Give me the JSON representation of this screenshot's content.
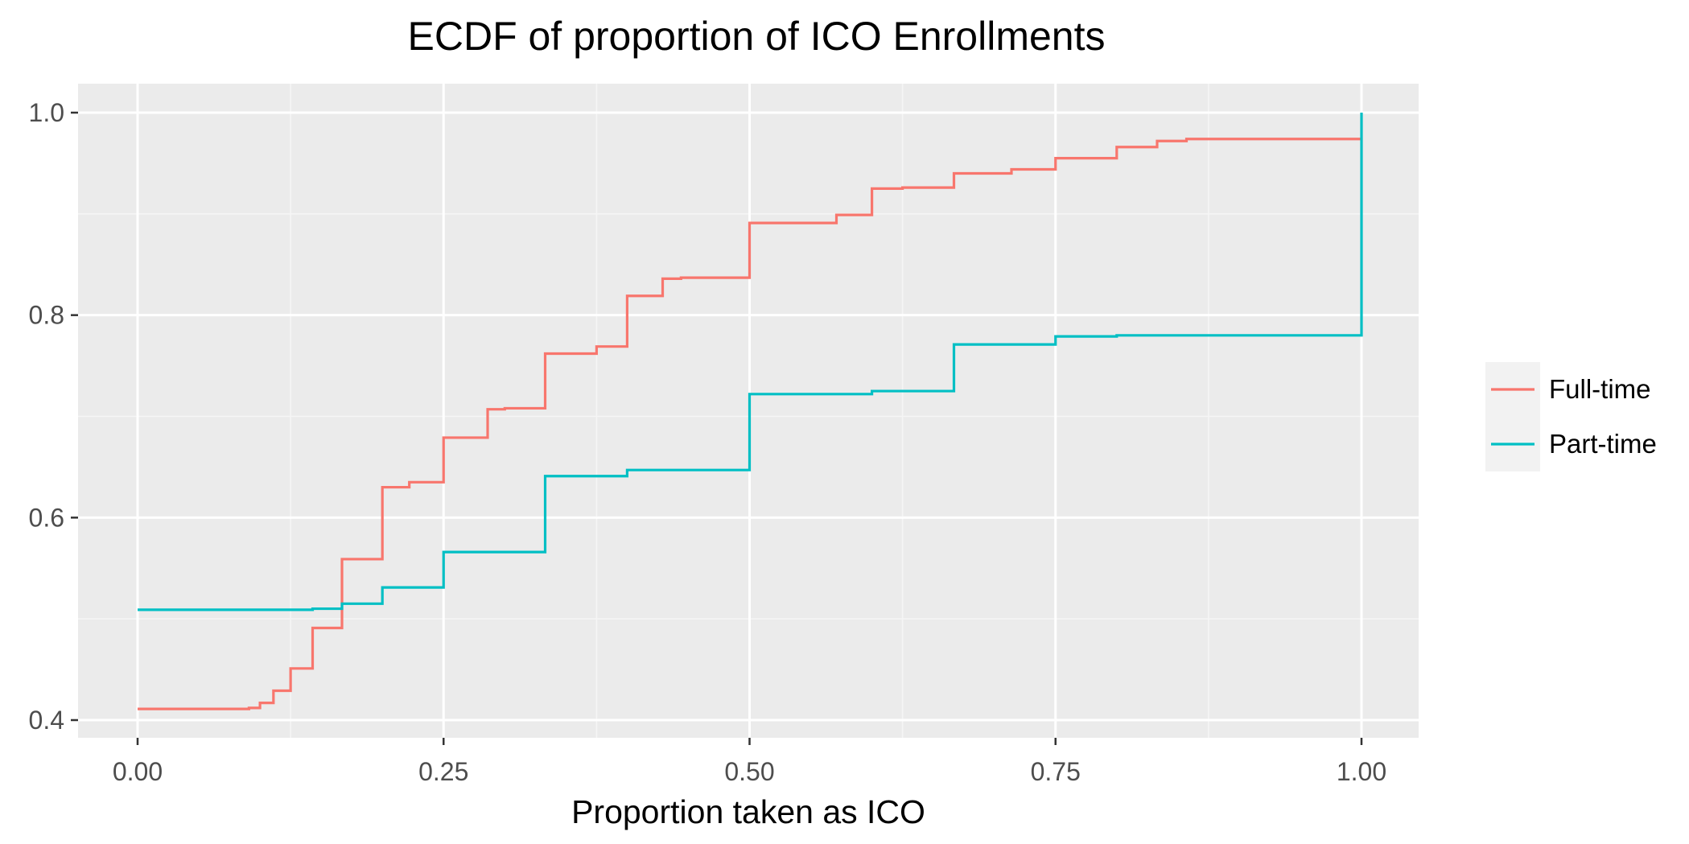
{
  "chart_data": {
    "type": "line",
    "step": true,
    "title": "ECDF of proportion of ICO Enrollments",
    "xlabel": "Proportion taken as ICO",
    "ylabel": "",
    "xlim": [
      0,
      1
    ],
    "ylim": [
      0.4,
      1.0
    ],
    "x_ticks": [
      0,
      0.25,
      0.5,
      0.75,
      1.0
    ],
    "x_tick_labels": [
      "0.00",
      "0.25",
      "0.50",
      "0.75",
      "1.00"
    ],
    "y_ticks": [
      0.4,
      0.6,
      0.8,
      1.0
    ],
    "y_tick_labels": [
      "0.4",
      "0.6",
      "0.8",
      "1.0"
    ],
    "grid": true,
    "legend_position": "right",
    "series": [
      {
        "name": "Full-time",
        "color": "#F8766D",
        "points": [
          [
            0.0,
            0.411
          ],
          [
            0.091,
            0.412
          ],
          [
            0.1,
            0.417
          ],
          [
            0.111,
            0.429
          ],
          [
            0.125,
            0.451
          ],
          [
            0.143,
            0.491
          ],
          [
            0.167,
            0.559
          ],
          [
            0.2,
            0.63
          ],
          [
            0.222,
            0.635
          ],
          [
            0.25,
            0.679
          ],
          [
            0.286,
            0.707
          ],
          [
            0.3,
            0.708
          ],
          [
            0.333,
            0.762
          ],
          [
            0.375,
            0.769
          ],
          [
            0.4,
            0.819
          ],
          [
            0.429,
            0.836
          ],
          [
            0.444,
            0.837
          ],
          [
            0.5,
            0.891
          ],
          [
            0.571,
            0.899
          ],
          [
            0.6,
            0.925
          ],
          [
            0.625,
            0.926
          ],
          [
            0.667,
            0.94
          ],
          [
            0.714,
            0.944
          ],
          [
            0.75,
            0.955
          ],
          [
            0.8,
            0.966
          ],
          [
            0.833,
            0.972
          ],
          [
            0.857,
            0.974
          ],
          [
            1.0,
            0.974
          ]
        ]
      },
      {
        "name": "Part-time",
        "color": "#00BFC4",
        "points": [
          [
            0.0,
            0.509
          ],
          [
            0.143,
            0.51
          ],
          [
            0.167,
            0.515
          ],
          [
            0.2,
            0.531
          ],
          [
            0.25,
            0.566
          ],
          [
            0.333,
            0.641
          ],
          [
            0.4,
            0.647
          ],
          [
            0.5,
            0.722
          ],
          [
            0.6,
            0.725
          ],
          [
            0.667,
            0.771
          ],
          [
            0.75,
            0.779
          ],
          [
            0.8,
            0.78
          ],
          [
            1.0,
            0.78
          ],
          [
            1.0,
            1.0
          ]
        ]
      }
    ]
  }
}
